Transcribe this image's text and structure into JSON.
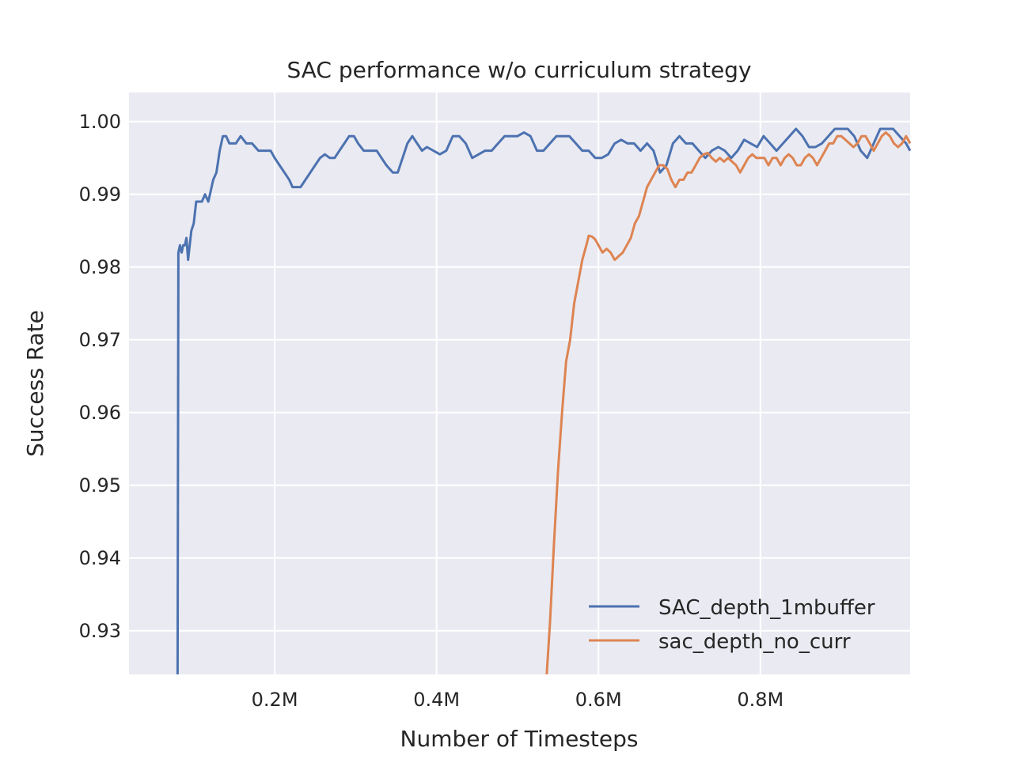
{
  "chart_data": {
    "type": "line",
    "title": "SAC performance w/o curriculum strategy",
    "xlabel": "Number of Timesteps",
    "ylabel": "Success Rate",
    "xlim": [
      0.02,
      0.985
    ],
    "ylim": [
      0.924,
      1.004
    ],
    "x_ticks": [
      0.2,
      0.4,
      0.6,
      0.8
    ],
    "x_tick_labels": [
      "0.2M",
      "0.4M",
      "0.6M",
      "0.8M"
    ],
    "y_ticks": [
      0.93,
      0.94,
      0.95,
      0.96,
      0.97,
      0.98,
      0.99,
      1.0
    ],
    "y_tick_labels": [
      "0.93",
      "0.94",
      "0.95",
      "0.96",
      "0.97",
      "0.98",
      "0.99",
      "1.00"
    ],
    "grid": true,
    "legend_position": "lower-right",
    "colors": {
      "background": "#eaeaf2",
      "series1": "#4c72b0",
      "series2": "#dd8452"
    },
    "series": [
      {
        "name": "SAC_depth_1mbuffer",
        "x": [
          0.08,
          0.081,
          0.083,
          0.085,
          0.087,
          0.089,
          0.091,
          0.093,
          0.095,
          0.097,
          0.1,
          0.103,
          0.106,
          0.11,
          0.114,
          0.118,
          0.12,
          0.124,
          0.128,
          0.132,
          0.136,
          0.14,
          0.144,
          0.148,
          0.152,
          0.158,
          0.165,
          0.172,
          0.18,
          0.188,
          0.195,
          0.2,
          0.206,
          0.212,
          0.218,
          0.222,
          0.226,
          0.232,
          0.238,
          0.244,
          0.25,
          0.256,
          0.262,
          0.268,
          0.274,
          0.28,
          0.286,
          0.292,
          0.298,
          0.303,
          0.31,
          0.318,
          0.326,
          0.332,
          0.338,
          0.346,
          0.352,
          0.358,
          0.364,
          0.37,
          0.376,
          0.382,
          0.388,
          0.396,
          0.404,
          0.412,
          0.42,
          0.428,
          0.436,
          0.444,
          0.452,
          0.46,
          0.468,
          0.476,
          0.484,
          0.492,
          0.5,
          0.508,
          0.516,
          0.524,
          0.532,
          0.54,
          0.548,
          0.556,
          0.564,
          0.572,
          0.58,
          0.588,
          0.596,
          0.604,
          0.612,
          0.62,
          0.628,
          0.636,
          0.644,
          0.652,
          0.66,
          0.668,
          0.676,
          0.684,
          0.692,
          0.7,
          0.708,
          0.716,
          0.724,
          0.732,
          0.74,
          0.748,
          0.756,
          0.764,
          0.772,
          0.78,
          0.788,
          0.796,
          0.804,
          0.812,
          0.82,
          0.828,
          0.836,
          0.844,
          0.852,
          0.86,
          0.868,
          0.876,
          0.884,
          0.892,
          0.9,
          0.908,
          0.916,
          0.924,
          0.932,
          0.94,
          0.948,
          0.956,
          0.964,
          0.972,
          0.98,
          0.985
        ],
        "values": [
          0.924,
          0.982,
          0.983,
          0.982,
          0.983,
          0.983,
          0.984,
          0.981,
          0.983,
          0.985,
          0.986,
          0.989,
          0.989,
          0.989,
          0.99,
          0.989,
          0.99,
          0.992,
          0.993,
          0.996,
          0.998,
          0.998,
          0.997,
          0.997,
          0.997,
          0.998,
          0.997,
          0.997,
          0.996,
          0.996,
          0.996,
          0.995,
          0.994,
          0.993,
          0.992,
          0.991,
          0.991,
          0.991,
          0.992,
          0.993,
          0.994,
          0.995,
          0.9955,
          0.995,
          0.995,
          0.996,
          0.997,
          0.998,
          0.998,
          0.997,
          0.996,
          0.996,
          0.996,
          0.995,
          0.994,
          0.993,
          0.993,
          0.995,
          0.997,
          0.998,
          0.997,
          0.996,
          0.9965,
          0.996,
          0.9955,
          0.996,
          0.998,
          0.998,
          0.997,
          0.995,
          0.9955,
          0.996,
          0.996,
          0.997,
          0.998,
          0.998,
          0.998,
          0.9985,
          0.998,
          0.996,
          0.996,
          0.997,
          0.998,
          0.998,
          0.998,
          0.997,
          0.996,
          0.996,
          0.995,
          0.995,
          0.9955,
          0.997,
          0.9975,
          0.997,
          0.997,
          0.996,
          0.997,
          0.996,
          0.993,
          0.994,
          0.997,
          0.998,
          0.997,
          0.997,
          0.996,
          0.995,
          0.996,
          0.9965,
          0.996,
          0.995,
          0.996,
          0.9975,
          0.997,
          0.9965,
          0.998,
          0.997,
          0.996,
          0.997,
          0.998,
          0.999,
          0.998,
          0.9965,
          0.9965,
          0.997,
          0.998,
          0.999,
          0.999,
          0.999,
          0.998,
          0.996,
          0.995,
          0.997,
          0.999,
          0.999,
          0.999,
          0.998,
          0.997,
          0.996
        ]
      },
      {
        "name": "sac_depth_no_curr",
        "x": [
          0.536,
          0.54,
          0.545,
          0.55,
          0.555,
          0.56,
          0.565,
          0.57,
          0.575,
          0.58,
          0.585,
          0.588,
          0.592,
          0.596,
          0.6,
          0.605,
          0.61,
          0.615,
          0.62,
          0.625,
          0.63,
          0.635,
          0.64,
          0.645,
          0.65,
          0.655,
          0.66,
          0.665,
          0.67,
          0.675,
          0.68,
          0.685,
          0.69,
          0.695,
          0.7,
          0.705,
          0.71,
          0.715,
          0.72,
          0.725,
          0.73,
          0.735,
          0.74,
          0.745,
          0.75,
          0.755,
          0.76,
          0.765,
          0.77,
          0.775,
          0.78,
          0.785,
          0.79,
          0.795,
          0.8,
          0.805,
          0.81,
          0.815,
          0.82,
          0.825,
          0.83,
          0.835,
          0.84,
          0.845,
          0.85,
          0.855,
          0.86,
          0.865,
          0.87,
          0.875,
          0.88,
          0.885,
          0.89,
          0.895,
          0.9,
          0.905,
          0.91,
          0.915,
          0.92,
          0.925,
          0.93,
          0.935,
          0.94,
          0.945,
          0.95,
          0.955,
          0.96,
          0.965,
          0.97,
          0.975,
          0.98,
          0.985
        ],
        "values": [
          0.924,
          0.931,
          0.942,
          0.952,
          0.96,
          0.967,
          0.97,
          0.975,
          0.978,
          0.981,
          0.983,
          0.9843,
          0.9842,
          0.9838,
          0.983,
          0.982,
          0.9825,
          0.982,
          0.981,
          0.9815,
          0.982,
          0.983,
          0.984,
          0.986,
          0.987,
          0.989,
          0.991,
          0.992,
          0.993,
          0.994,
          0.994,
          0.9935,
          0.992,
          0.991,
          0.992,
          0.992,
          0.993,
          0.993,
          0.994,
          0.995,
          0.9955,
          0.9957,
          0.995,
          0.9945,
          0.995,
          0.9945,
          0.995,
          0.9945,
          0.994,
          0.993,
          0.994,
          0.995,
          0.9955,
          0.995,
          0.995,
          0.995,
          0.994,
          0.995,
          0.995,
          0.994,
          0.995,
          0.9955,
          0.995,
          0.994,
          0.994,
          0.995,
          0.9955,
          0.995,
          0.994,
          0.995,
          0.996,
          0.997,
          0.997,
          0.998,
          0.998,
          0.9975,
          0.997,
          0.9965,
          0.997,
          0.998,
          0.998,
          0.997,
          0.996,
          0.997,
          0.998,
          0.9985,
          0.998,
          0.997,
          0.9965,
          0.997,
          0.998,
          0.997
        ]
      }
    ]
  }
}
